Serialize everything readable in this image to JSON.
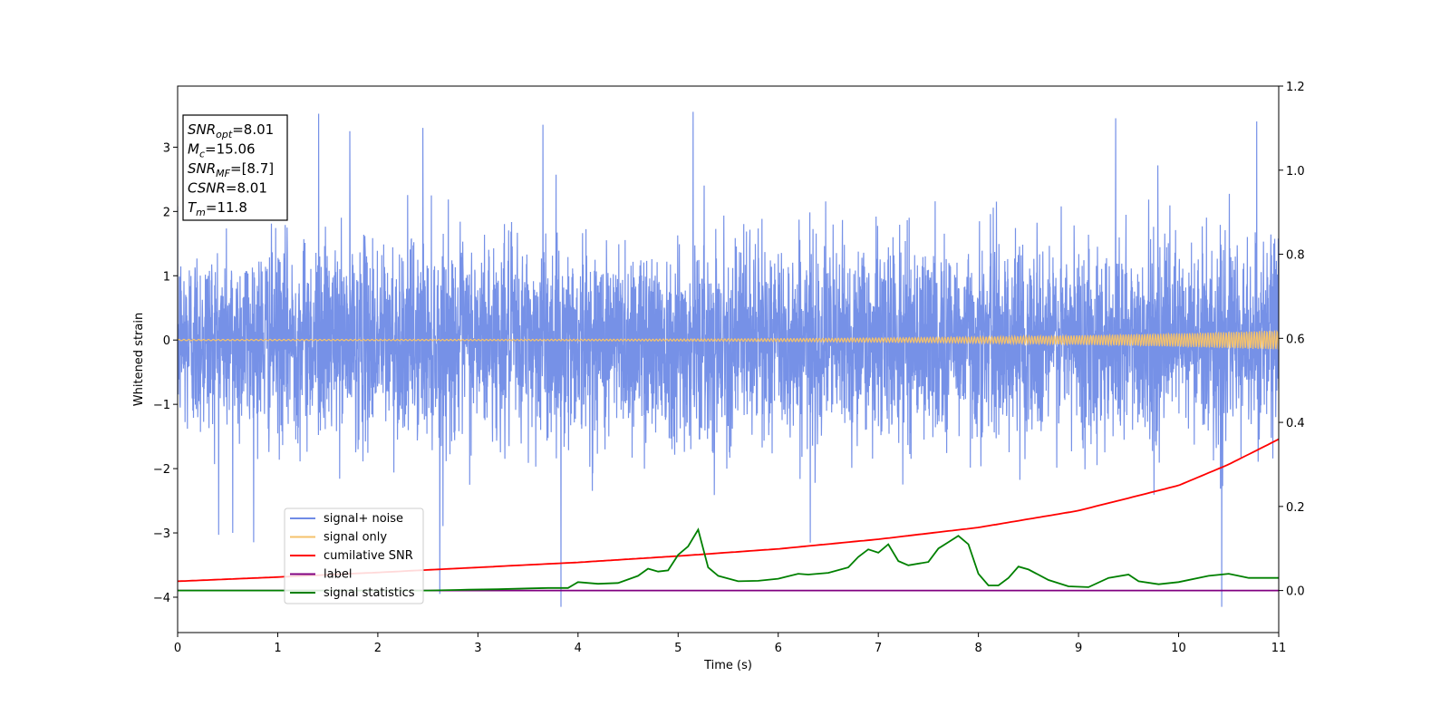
{
  "chart_data": {
    "type": "line",
    "xlabel": "Time (s)",
    "ylabel": "Whitened strain",
    "xlim": [
      0,
      11
    ],
    "ylim": [
      -4.55,
      3.95
    ],
    "y2lim": [
      -0.1,
      1.2
    ],
    "x_ticks": [
      0,
      1,
      2,
      3,
      4,
      5,
      6,
      7,
      8,
      9,
      10,
      11
    ],
    "y_ticks": [
      -4,
      -3,
      -2,
      -1,
      0,
      1,
      2,
      3
    ],
    "y_tick_labels": [
      "−4",
      "−3",
      "−2",
      "−1",
      "0",
      "1",
      "2",
      "3"
    ],
    "y2_ticks": [
      0.0,
      0.2,
      0.4,
      0.6,
      0.8,
      1.0,
      1.2
    ],
    "y2_tick_labels": [
      "0.0",
      "0.2",
      "0.4",
      "0.6",
      "0.8",
      "1.0",
      "1.2"
    ],
    "legend_position": "lower-left",
    "info_box": {
      "lines": [
        {
          "sym": "SNR",
          "sub": "opt",
          "val": "=8.01"
        },
        {
          "sym": "M",
          "sub": "c",
          "val": "=15.06"
        },
        {
          "sym": "SNR",
          "sub": "MF",
          "val": "=[8.7]"
        },
        {
          "sym": "CSNR",
          "sub": "",
          "val": "=8.01"
        },
        {
          "sym": "T",
          "sub": "m",
          "val": "=11.8"
        }
      ]
    },
    "series": [
      {
        "name": "signal+ noise",
        "axis": "left",
        "color": "#6f8be6",
        "description": "whitened strain noise, approx. std 0.75, with peak spikes",
        "noise_std": 0.75,
        "spikes": [
          {
            "x": 1.41,
            "y": 3.52
          },
          {
            "x": 5.15,
            "y": 3.55
          },
          {
            "x": 10.43,
            "y": -4.15
          },
          {
            "x": 3.83,
            "y": -4.15
          },
          {
            "x": 2.62,
            "y": -3.95
          },
          {
            "x": 9.37,
            "y": 3.45
          },
          {
            "x": 3.65,
            "y": 3.35
          },
          {
            "x": 10.78,
            "y": 3.4
          },
          {
            "x": 2.45,
            "y": 3.3
          },
          {
            "x": 1.72,
            "y": 3.25
          },
          {
            "x": 0.55,
            "y": -3.0
          },
          {
            "x": 6.32,
            "y": -3.15
          }
        ]
      },
      {
        "name": "signal only",
        "axis": "left",
        "color": "#f5c26b",
        "description": "chirp with amplitude rising from 0.01 to about 0.15 at t=11",
        "amp_start": 0.01,
        "amp_end": 0.15
      },
      {
        "name": "cumilative SNR",
        "axis": "right",
        "color": "#ff0000",
        "x": [
          0,
          1,
          2,
          3,
          4,
          5,
          6,
          7,
          8,
          9,
          10,
          10.5,
          11
        ],
        "y": [
          0.022,
          0.032,
          0.043,
          0.055,
          0.067,
          0.082,
          0.099,
          0.122,
          0.15,
          0.19,
          0.25,
          0.3,
          0.36
        ]
      },
      {
        "name": "label",
        "axis": "right",
        "color": "#800080",
        "x": [
          0,
          11
        ],
        "y": [
          0.0,
          0.0
        ]
      },
      {
        "name": "signal statistics",
        "axis": "right",
        "color": "#008000",
        "x": [
          0,
          0.5,
          1,
          1.5,
          2,
          2.5,
          2.9,
          3.2,
          3.5,
          3.7,
          3.9,
          4.0,
          4.2,
          4.4,
          4.6,
          4.7,
          4.8,
          4.9,
          5.0,
          5.1,
          5.2,
          5.3,
          5.4,
          5.6,
          5.8,
          6.0,
          6.2,
          6.3,
          6.5,
          6.7,
          6.8,
          6.9,
          7.0,
          7.1,
          7.2,
          7.3,
          7.5,
          7.6,
          7.7,
          7.8,
          7.9,
          8.0,
          8.1,
          8.2,
          8.3,
          8.4,
          8.5,
          8.7,
          8.9,
          9.1,
          9.3,
          9.5,
          9.6,
          9.8,
          10.0,
          10.3,
          10.5,
          10.7,
          11
        ],
        "y": [
          0.0,
          0.0,
          0.0,
          0.0,
          0.0,
          0.0,
          0.002,
          0.003,
          0.005,
          0.006,
          0.006,
          0.02,
          0.016,
          0.018,
          0.035,
          0.052,
          0.045,
          0.048,
          0.085,
          0.105,
          0.145,
          0.055,
          0.035,
          0.022,
          0.023,
          0.028,
          0.04,
          0.038,
          0.042,
          0.055,
          0.08,
          0.098,
          0.09,
          0.11,
          0.07,
          0.06,
          0.068,
          0.1,
          0.115,
          0.13,
          0.11,
          0.04,
          0.012,
          0.012,
          0.03,
          0.057,
          0.05,
          0.025,
          0.01,
          0.008,
          0.03,
          0.038,
          0.022,
          0.015,
          0.02,
          0.035,
          0.04,
          0.03,
          0.03
        ]
      }
    ]
  }
}
